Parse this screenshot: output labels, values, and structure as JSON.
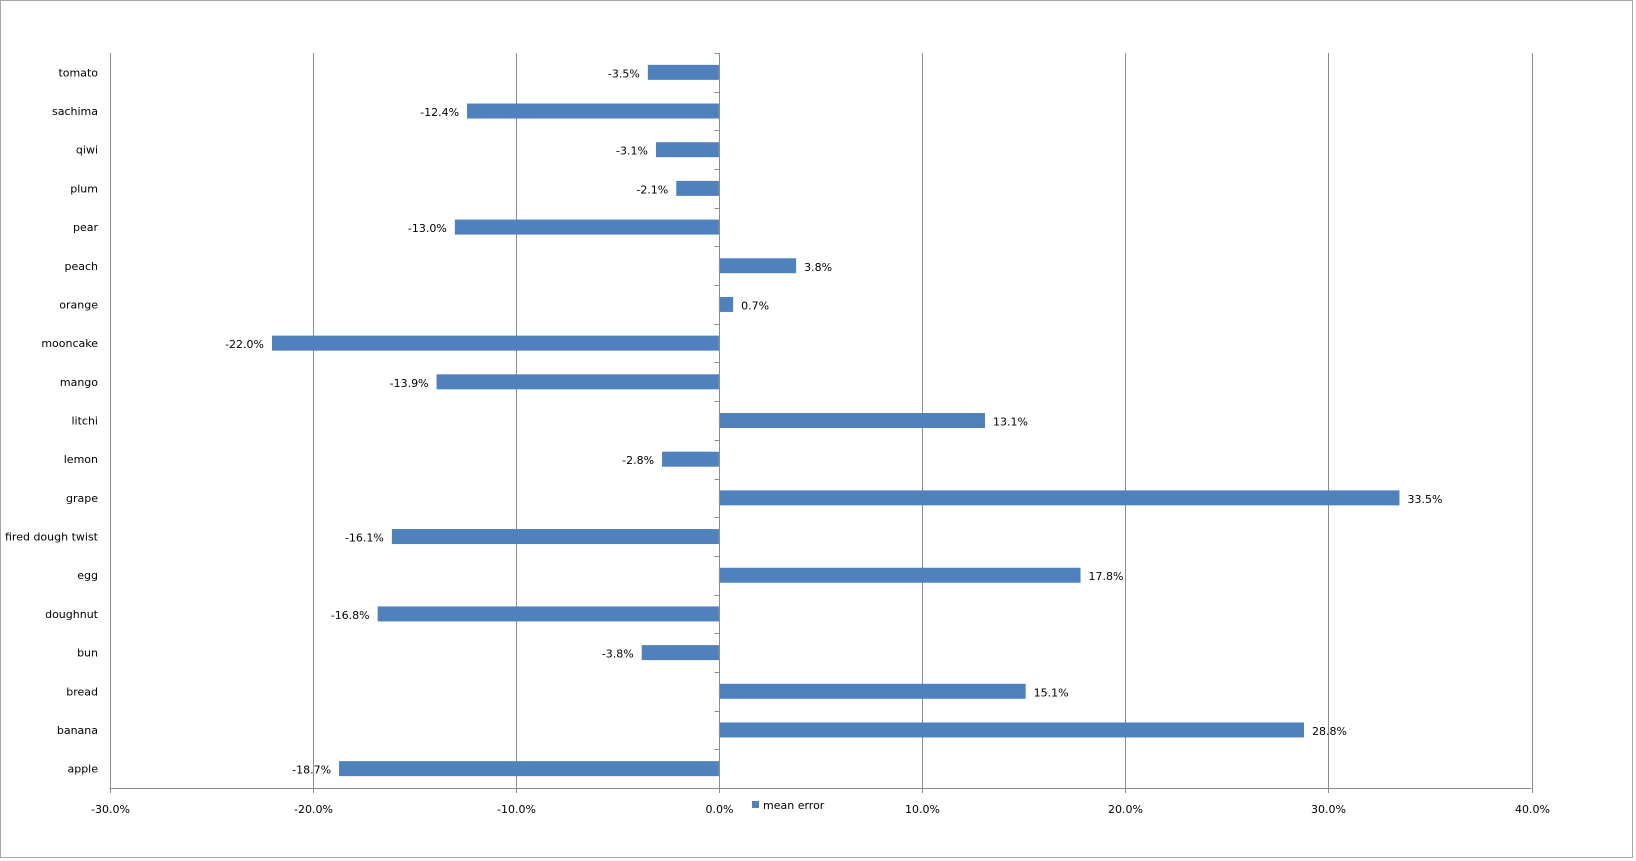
{
  "chart_data": {
    "type": "bar",
    "orientation": "horizontal",
    "categories": [
      "tomato",
      "sachima",
      "qiwi",
      "plum",
      "pear",
      "peach",
      "orange",
      "mooncake",
      "mango",
      "litchi",
      "lemon",
      "grape",
      "fired dough twist",
      "egg",
      "doughnut",
      "bun",
      "bread",
      "banana",
      "apple"
    ],
    "series": [
      {
        "name": "mean error",
        "values": [
          -3.5,
          -12.4,
          -3.1,
          -2.1,
          -13.0,
          3.8,
          0.7,
          -22.0,
          -13.9,
          13.1,
          -2.8,
          33.5,
          -16.1,
          17.8,
          -16.8,
          -3.8,
          15.1,
          28.8,
          -18.7
        ],
        "color": "#4f81bd"
      }
    ],
    "data_labels": [
      "-3.5%",
      "-12.4%",
      "-3.1%",
      "-2.1%",
      "-13.0%",
      "3.8%",
      "0.7%",
      "-22.0%",
      "-13.9%",
      "13.1%",
      "-2.8%",
      "33.5%",
      "-16.1%",
      "17.8%",
      "-16.8%",
      "-3.8%",
      "15.1%",
      "28.8%",
      "-18.7%"
    ],
    "x_ticks": [
      -30,
      -20,
      -10,
      0,
      10,
      20,
      30,
      40
    ],
    "x_tick_labels": [
      "-30.0%",
      "-20.0%",
      "-10.0%",
      "0.0%",
      "10.0%",
      "20.0%",
      "30.0%",
      "40.0%"
    ],
    "xlim": [
      -30,
      40
    ],
    "unit": "%",
    "grid": "vertical",
    "legend_position": "bottom-center",
    "colors": {
      "bar": "#4f81bd",
      "grid": "#8c8c8c",
      "axis": "#8c8c8c"
    }
  }
}
